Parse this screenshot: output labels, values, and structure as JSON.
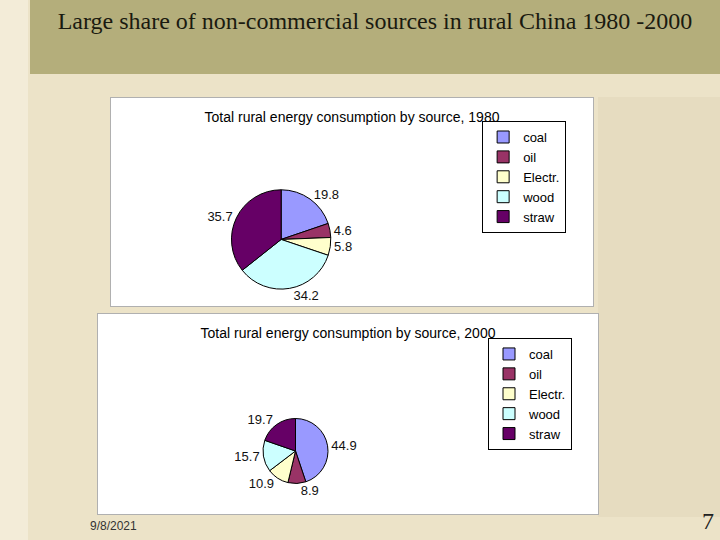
{
  "slide": {
    "title": "Large share of non-commercial sources in rural China 1980 -2000",
    "date": "9/8/2021",
    "page": 7
  },
  "chart_data": [
    {
      "type": "pie",
      "title": "Total rural energy consumption by source, 1980",
      "categories": [
        "coal",
        "oil",
        "Electr.",
        "wood",
        "straw"
      ],
      "values": [
        19.8,
        4.6,
        5.8,
        34.2,
        35.7
      ],
      "colors": [
        "#9999ff",
        "#993366",
        "#ffffcc",
        "#ccffff",
        "#660066"
      ],
      "data_labels": true,
      "legend": "right"
    },
    {
      "type": "pie",
      "title": "Total rural energy consumption by source, 2000",
      "categories": [
        "coal",
        "oil",
        "Electr.",
        "wood",
        "straw"
      ],
      "values": [
        44.9,
        8.9,
        10.9,
        15.7,
        19.7
      ],
      "colors": [
        "#9999ff",
        "#993366",
        "#ffffcc",
        "#ccffff",
        "#660066"
      ],
      "data_labels": true,
      "legend": "right"
    }
  ]
}
